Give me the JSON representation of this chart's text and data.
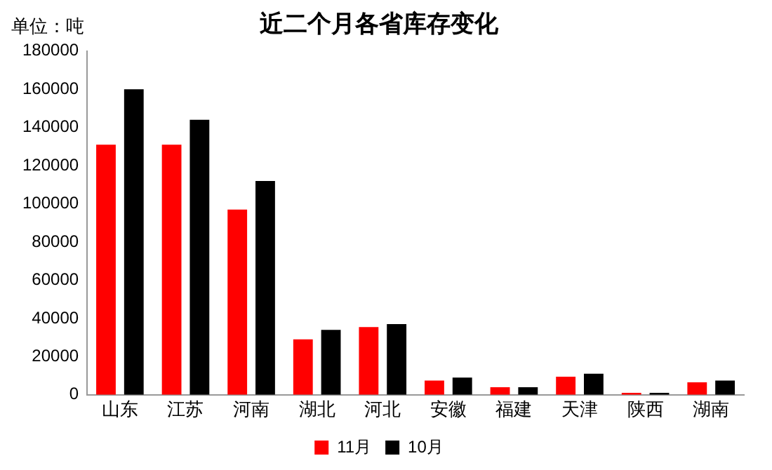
{
  "chart_data": {
    "type": "bar",
    "title": "近二个月各省库存变化",
    "annotations": [
      "单位：吨"
    ],
    "categories": [
      "山东",
      "江苏",
      "河南",
      "湖北",
      "河北",
      "安徽",
      "福建",
      "天津",
      "陕西",
      "湖南"
    ],
    "series": [
      {
        "name": "11月",
        "color": "#ff0000",
        "values": [
          131000,
          131000,
          97000,
          29000,
          35500,
          7500,
          4000,
          9500,
          1000,
          6500
        ]
      },
      {
        "name": "10月",
        "color": "#000000",
        "values": [
          160000,
          144000,
          112000,
          34000,
          37000,
          9000,
          4000,
          11000,
          1000,
          7500
        ]
      }
    ],
    "ylim": [
      0,
      180000
    ],
    "yticks": [
      0,
      20000,
      40000,
      60000,
      80000,
      100000,
      120000,
      140000,
      160000,
      180000
    ],
    "grid": false,
    "legend": "bottom"
  }
}
